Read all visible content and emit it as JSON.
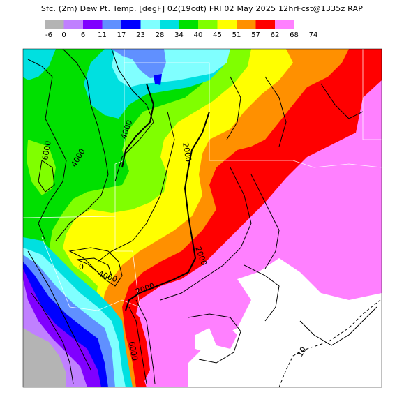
{
  "title": "Sfc. (2m) Dew Pt. Temp. [degF] 0Z(19cdt) FRI 02 May 2025 12hrFcst@1335z RAP",
  "legend": {
    "ticks": [
      "-6",
      "0",
      "6",
      "11",
      "17",
      "23",
      "28",
      "34",
      "40",
      "45",
      "51",
      "57",
      "62",
      "68",
      "74"
    ],
    "colors": [
      "#b4b4b4",
      "#c080ff",
      "#8000ff",
      "#6090ff",
      "#0000ff",
      "#80ffff",
      "#00e0e0",
      "#00e000",
      "#80ff00",
      "#ffff00",
      "#ff9000",
      "#ff0000",
      "#ff80ff",
      "#ffffff"
    ]
  },
  "contour_labels": [
    {
      "id": "c6000",
      "text": "6000"
    },
    {
      "id": "c4000a",
      "text": "4000"
    },
    {
      "id": "c4000b",
      "text": "4000"
    },
    {
      "id": "c4000c",
      "text": "4000"
    },
    {
      "id": "c2000a",
      "text": "2000"
    },
    {
      "id": "c2000b",
      "text": "2000"
    },
    {
      "id": "c2000c",
      "text": "2000"
    },
    {
      "id": "c0",
      "text": "0"
    },
    {
      "id": "c6000b",
      "text": "6000"
    },
    {
      "id": "c10",
      "text": "10"
    }
  ]
}
